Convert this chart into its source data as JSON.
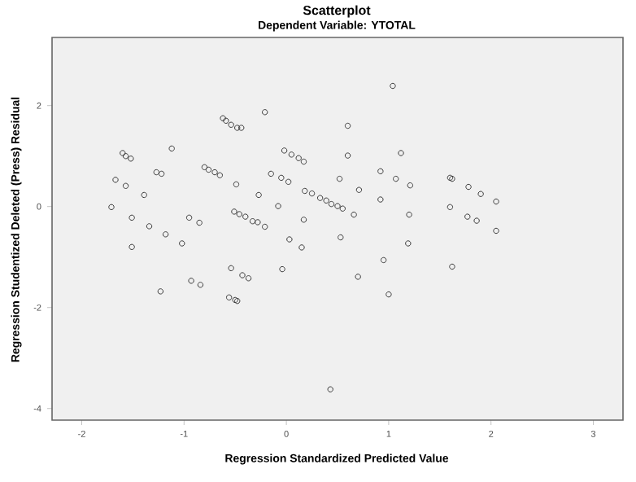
{
  "chart_data": {
    "type": "scatter",
    "title": "Scatterplot",
    "subtitle": "Dependent Variable: YTOTAL",
    "xlabel": "Regression Standardized Predicted Value",
    "ylabel": "Regression Studentized Deleted (Press) Residual",
    "xlim": [
      -2.29,
      3.29
    ],
    "ylim": [
      -4.23,
      3.35
    ],
    "xticks": [
      -2,
      -1,
      0,
      1,
      2,
      3
    ],
    "yticks": [
      -4,
      -2,
      0,
      2
    ],
    "grid": false,
    "marker": "circle",
    "series": [
      {
        "color": "#3a3a3a",
        "x": [
          -0.62,
          -0.59,
          -0.54,
          -0.48,
          -0.44,
          -0.21,
          -1.6,
          -1.57,
          -1.52,
          -1.12,
          -1.67,
          -1.57,
          -1.27,
          -1.22,
          -1.39,
          -1.71,
          -1.51,
          -1.34,
          -1.18,
          -1.02,
          -1.51,
          -0.95,
          -0.85,
          -0.8,
          -0.76,
          -0.7,
          -0.65,
          -0.49,
          -0.51,
          -0.46,
          -0.4,
          -0.33,
          -0.28,
          -0.21,
          -0.27,
          -0.15,
          -0.05,
          0.02,
          -0.02,
          0.05,
          0.12,
          0.17,
          -0.08,
          0.18,
          0.25,
          0.33,
          0.39,
          0.44,
          0.5,
          0.55,
          0.17,
          0.03,
          0.15,
          0.6,
          0.6,
          0.52,
          0.53,
          0.66,
          1.04,
          1.12,
          0.92,
          1.07,
          1.21,
          0.71,
          1.6,
          1.62,
          1.78,
          1.9,
          2.05,
          0.92,
          1.2,
          1.6,
          1.77,
          1.86,
          2.05,
          1.19,
          0.95,
          -0.54,
          -0.43,
          -0.37,
          -0.04,
          0.7,
          -0.93,
          -0.84,
          -1.23,
          -0.56,
          -0.5,
          -0.48,
          0.43,
          1.0,
          1.62
        ],
        "values": [
          1.75,
          1.7,
          1.62,
          1.56,
          1.56,
          1.87,
          1.06,
          1.0,
          0.95,
          1.15,
          0.53,
          0.41,
          0.68,
          0.65,
          0.23,
          -0.01,
          -0.22,
          -0.39,
          -0.55,
          -0.73,
          -0.8,
          -0.22,
          -0.32,
          0.78,
          0.73,
          0.68,
          0.62,
          0.44,
          -0.1,
          -0.15,
          -0.2,
          -0.29,
          -0.31,
          -0.4,
          0.23,
          0.65,
          0.57,
          0.49,
          1.11,
          1.03,
          0.96,
          0.89,
          0.01,
          0.31,
          0.26,
          0.17,
          0.12,
          0.05,
          0.01,
          -0.04,
          -0.26,
          -0.65,
          -0.81,
          1.6,
          1.01,
          0.55,
          -0.61,
          -0.16,
          2.39,
          1.06,
          0.7,
          0.55,
          0.42,
          0.33,
          0.57,
          0.55,
          0.39,
          0.25,
          0.1,
          0.14,
          -0.16,
          -0.01,
          -0.2,
          -0.28,
          -0.48,
          -0.73,
          -1.06,
          -1.22,
          -1.36,
          -1.42,
          -1.24,
          -1.39,
          -1.47,
          -1.55,
          -1.68,
          -1.8,
          -1.85,
          -1.87,
          -3.62,
          -1.74,
          -1.19
        ]
      }
    ]
  }
}
